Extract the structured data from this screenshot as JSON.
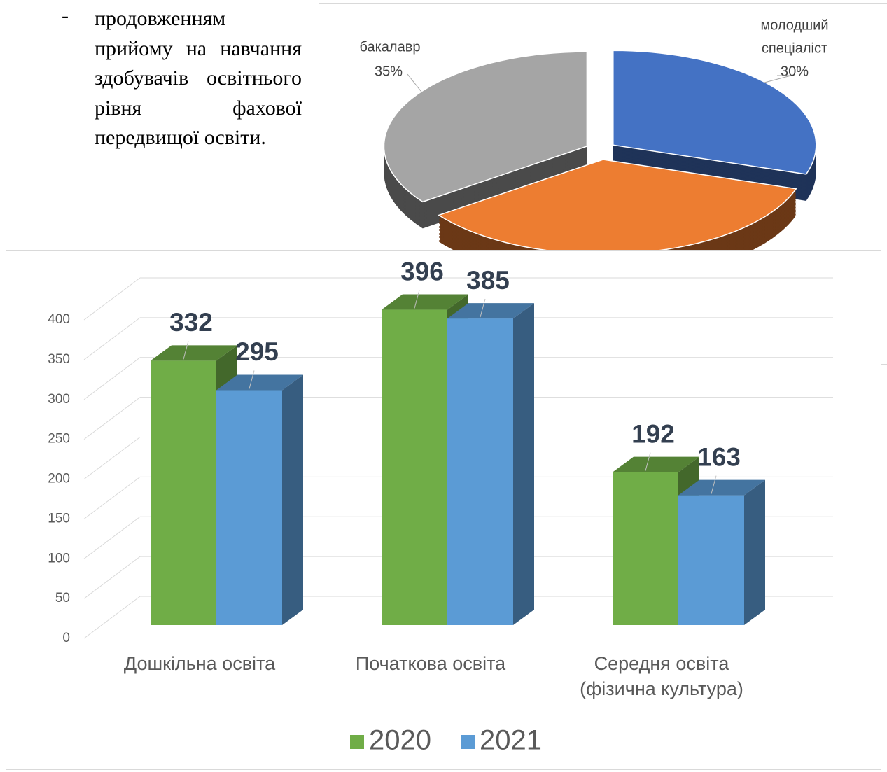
{
  "text": {
    "bullet": "-",
    "paragraph": "продовженням прийому на навчання здобувачів освітнього рівня фахової передвищої освіти."
  },
  "chart_data": [
    {
      "type": "pie",
      "categories": [
        "молодший спеціаліст",
        null,
        "бакалавр"
      ],
      "values": [
        30,
        35,
        35
      ],
      "value_labels": [
        "30%",
        null,
        "35%"
      ],
      "colors": [
        "#4472c4",
        "#ed7d31",
        "#a5a5a5"
      ]
    },
    {
      "type": "bar",
      "categories": [
        "Дошкільна освіта",
        "Початкова освіта",
        "Середня освіта (фізична культура)"
      ],
      "series": [
        {
          "name": "2020",
          "color": "#70ad47",
          "values": [
            332,
            396,
            192
          ]
        },
        {
          "name": "2021",
          "color": "#5b9bd5",
          "values": [
            295,
            385,
            163
          ]
        }
      ],
      "ylim": [
        0,
        400
      ],
      "yticks": [
        0,
        50,
        100,
        150,
        200,
        250,
        300,
        350,
        400
      ],
      "grid": true,
      "legend": "bottom"
    }
  ]
}
